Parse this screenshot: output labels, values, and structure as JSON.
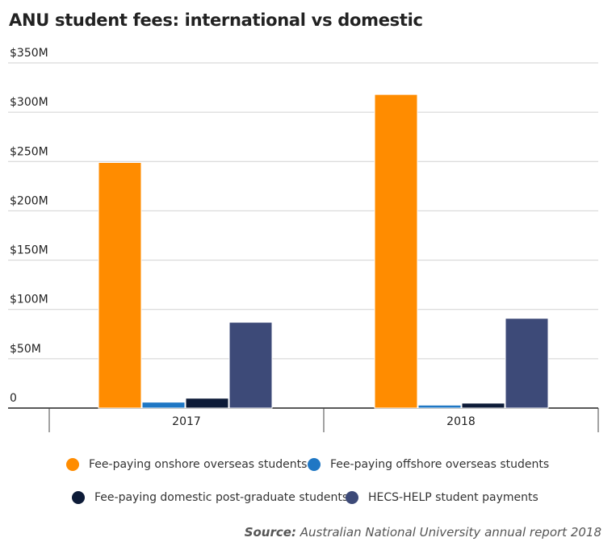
{
  "chart_data": {
    "type": "bar",
    "title": "ANU student fees: international vs domestic",
    "categories": [
      "2017",
      "2018"
    ],
    "series": [
      {
        "name": "Fee-paying onshore overseas students",
        "color": "#ff8c00",
        "values": [
          249,
          318
        ]
      },
      {
        "name": "Fee-paying offshore overseas students",
        "color": "#1f77c4",
        "values": [
          6,
          3
        ]
      },
      {
        "name": "Fee-paying domestic post-graduate students",
        "color": "#0d1b38",
        "values": [
          10,
          5
        ]
      },
      {
        "name": "HECS-HELP student payments",
        "color": "#3d4a78",
        "values": [
          87,
          91
        ]
      }
    ],
    "y_ticks": [
      {
        "value": 0,
        "label": "0"
      },
      {
        "value": 50,
        "label": "$50M"
      },
      {
        "value": 100,
        "label": "$100M"
      },
      {
        "value": 150,
        "label": "$150M"
      },
      {
        "value": 200,
        "label": "$200M"
      },
      {
        "value": 250,
        "label": "$250M"
      },
      {
        "value": 300,
        "label": "$300M"
      },
      {
        "value": 350,
        "label": "$350M"
      }
    ],
    "ylim": [
      0,
      350
    ],
    "ylabel": "",
    "xlabel": "",
    "grid": true,
    "legend_position": "bottom"
  },
  "source": {
    "prefix": "Source:",
    "text": "Australian National University annual report 2018"
  }
}
